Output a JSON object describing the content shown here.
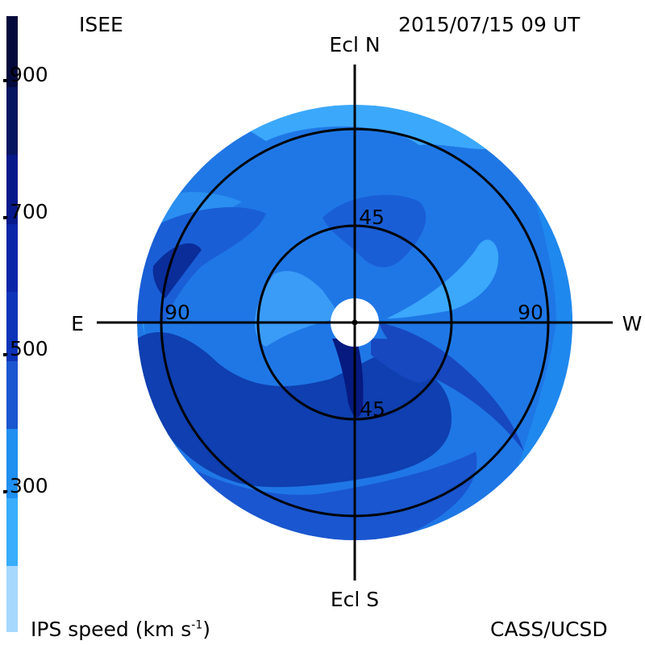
{
  "header": {
    "source": "ISEE",
    "timestamp": "2015/07/15 09 UT"
  },
  "footer": {
    "quantity_label": "IPS speed (km s",
    "quantity_exp": "-1",
    "quantity_close": ")",
    "credit": "CASS/UCSD"
  },
  "map": {
    "compass": {
      "north": "Ecl N",
      "south": "Ecl S",
      "east": "E",
      "west": "W"
    },
    "ring_labels": {
      "inner_top": "45",
      "inner_bottom": "45",
      "outer_left": "90",
      "outer_right": "90"
    }
  },
  "colorbar": {
    "ticks": [
      ".900",
      ".700",
      ".500",
      ".300"
    ],
    "colors": [
      "#050a3c",
      "#061a80",
      "#0c2db8",
      "#1a53c8",
      "#1e6ee0",
      "#1f8ff0",
      "#37adfb",
      "#a6d8fd"
    ]
  },
  "palette": {
    "bg_main": "#1f77e6",
    "dark": "#0f3fb0",
    "darker": "#0a2d9a",
    "darkest": "#061a80",
    "light": "#3ba8fb",
    "lighter": "#54bcfc"
  }
}
